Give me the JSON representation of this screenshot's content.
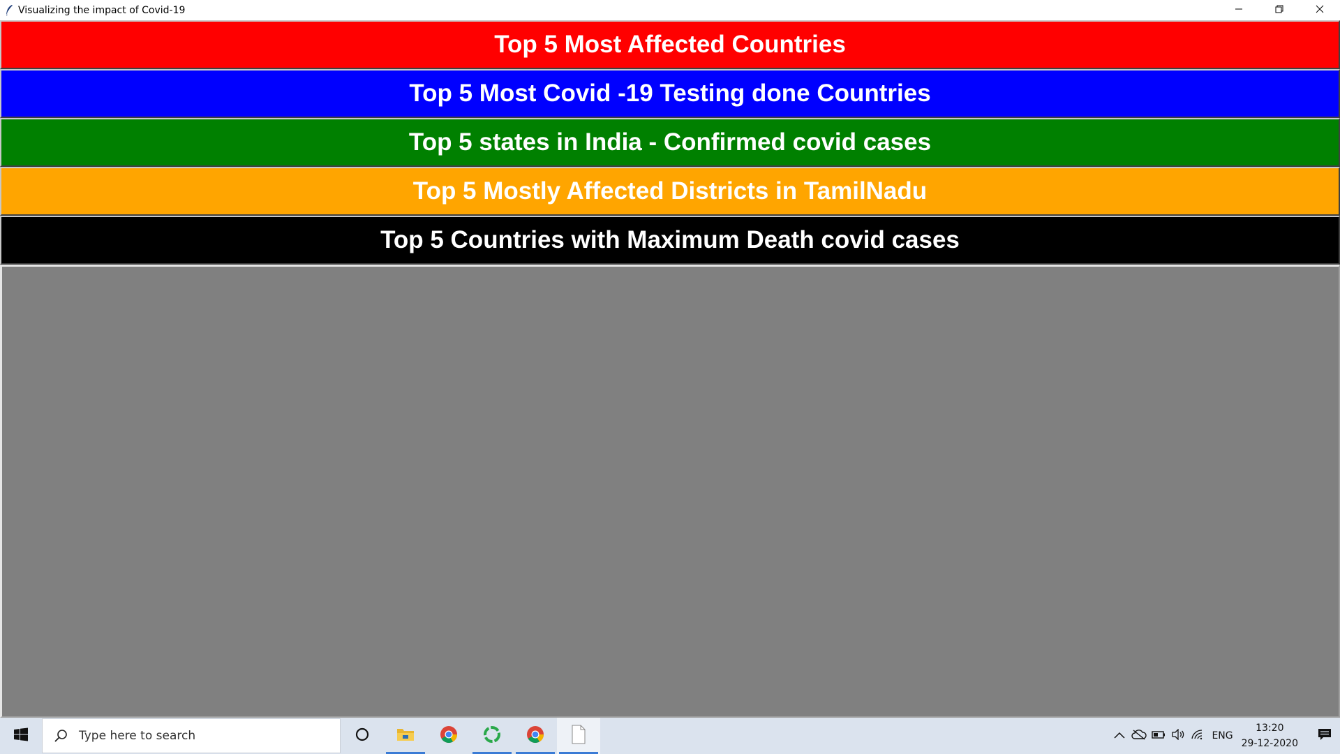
{
  "window": {
    "title": "Visualizing the impact of  Covid-19",
    "icon": "feather-icon",
    "controls": [
      "minimize-icon",
      "restore-icon",
      "close-icon"
    ]
  },
  "buttons": [
    {
      "label": "Top 5 Most Affected Countries",
      "color": "#ff0000"
    },
    {
      "label": "Top 5 Most Covid -19 Testing done Countries",
      "color": "#0000ff"
    },
    {
      "label": "Top 5 states in India - Confirmed covid cases",
      "color": "#008000"
    },
    {
      "label": "Top 5 Mostly Affected Districts in TamilNadu",
      "color": "#ffa500"
    },
    {
      "label": "Top 5 Countries with Maximum Death covid cases",
      "color": "#000000"
    }
  ],
  "canvas": {
    "color": "#808080"
  },
  "taskbar": {
    "search": {
      "placeholder": "Type here to search"
    },
    "pinned": [
      "cortana-icon",
      "file-explorer-icon",
      "chrome-icon",
      "loading-app-icon",
      "chrome-icon",
      "document-icon"
    ],
    "tray": {
      "icons": [
        "chevron-up-icon",
        "onedrive-icon",
        "battery-icon",
        "speaker-icon",
        "wifi-icon"
      ],
      "language": "ENG",
      "time": "13:20",
      "date": "29-12-2020"
    }
  }
}
